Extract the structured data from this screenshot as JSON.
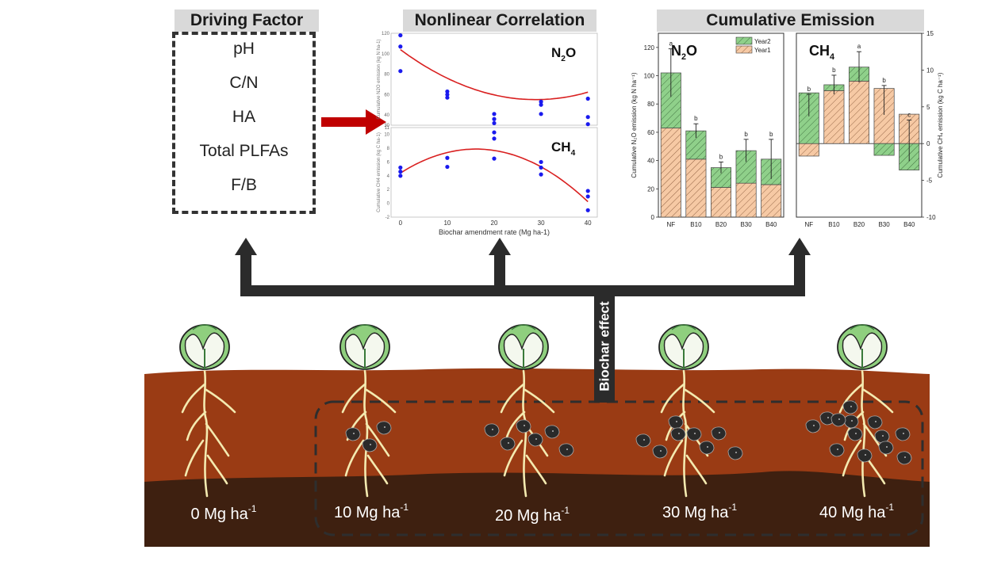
{
  "headers": {
    "driving_factor": "Driving Factor",
    "nonlinear": "Nonlinear Correlation",
    "cumulative": "Cumulative Emission"
  },
  "driving_factors": [
    "pH",
    "C/N",
    "HA",
    "Total PLFAs",
    "F/B"
  ],
  "biochar_effect_label": "Biochar effect",
  "soil_rates": [
    "0 Mg ha",
    "10 Mg ha",
    "20 Mg ha",
    "30 Mg ha",
    "40 Mg ha"
  ],
  "soil_rate_exp": "-1",
  "colors": {
    "soil_top": "#9a3b14",
    "soil_bottom": "#3e2010",
    "arrow_red": "#c00000",
    "year1": "#f6c9a4",
    "year2": "#8fd08a",
    "fit_line": "#d92020",
    "points": "#1a1aee",
    "biochar": "#222222",
    "root": "#f4eab0"
  },
  "chart_data": [
    {
      "type": "scatter",
      "panel": "N2O",
      "label_main": "N",
      "label_sub": "2",
      "label_tail": "O",
      "ylabel": "Cumulative N2O emission (kg N ha-1)",
      "x_ticks": [
        "0",
        "10",
        "20",
        "30",
        "40"
      ],
      "y_ticks": [
        "30",
        "40",
        "60",
        "80",
        "100",
        "120"
      ],
      "ylim": [
        30,
        120
      ],
      "xlim": [
        -2,
        42
      ],
      "points": [
        [
          0,
          118
        ],
        [
          0,
          107
        ],
        [
          0,
          83
        ],
        [
          10,
          63
        ],
        [
          10,
          60
        ],
        [
          10,
          57
        ],
        [
          20,
          41
        ],
        [
          20,
          36
        ],
        [
          20,
          32
        ],
        [
          30,
          53
        ],
        [
          30,
          50
        ],
        [
          30,
          41
        ],
        [
          40,
          56
        ],
        [
          40,
          38
        ],
        [
          40,
          31
        ]
      ],
      "fit": {
        "a": 0.0587,
        "b": -3.39,
        "c": 104
      }
    },
    {
      "type": "scatter",
      "panel": "CH4",
      "label_main": "CH",
      "label_sub": "4",
      "label_tail": "",
      "ylabel": "Cumulative CH4 emission (kg C ha-1)",
      "xlabel": "Biochar amendment rate (Mg ha-1)",
      "x_ticks": [
        "0",
        "10",
        "20",
        "30",
        "40"
      ],
      "y_ticks": [
        "-2",
        "0",
        "2",
        "4",
        "6",
        "8",
        "10",
        "11"
      ],
      "ylim": [
        -2,
        11
      ],
      "xlim": [
        -2,
        42
      ],
      "points": [
        [
          0,
          5.2
        ],
        [
          0,
          4.6
        ],
        [
          0,
          4.0
        ],
        [
          10,
          6.6
        ],
        [
          10,
          5.3
        ],
        [
          20,
          10.3
        ],
        [
          20,
          9.4
        ],
        [
          20,
          6.5
        ],
        [
          30,
          6.0
        ],
        [
          30,
          5.2
        ],
        [
          30,
          4.2
        ],
        [
          40,
          1.8
        ],
        [
          40,
          1.0
        ],
        [
          40,
          -1.0
        ]
      ],
      "fit": {
        "a": -0.0134,
        "b": 0.432,
        "c": 4.4
      }
    },
    {
      "type": "bar",
      "panel": "N2O",
      "label_main": "N",
      "label_sub": "2",
      "label_tail": "O",
      "categories": [
        "NF",
        "B10",
        "B20",
        "B30",
        "B40"
      ],
      "ylabel": "Cumulative N₂O emission (kg N ha⁻¹)",
      "ylim": [
        0,
        130
      ],
      "y_ticks": [
        "0",
        "20",
        "40",
        "60",
        "80",
        "100",
        "120"
      ],
      "series": [
        {
          "name": "Year1",
          "values": [
            63,
            41,
            21,
            24,
            23
          ]
        },
        {
          "name": "Year2",
          "values": [
            39,
            20,
            14,
            23,
            18
          ]
        }
      ],
      "errors": [
        17,
        5,
        4,
        8,
        14
      ],
      "letters": [
        "a",
        "b",
        "b",
        "b",
        "b"
      ],
      "legend": [
        "Year2",
        "Year1"
      ]
    },
    {
      "type": "bar",
      "panel": "CH4",
      "label_main": "CH",
      "label_sub": "4",
      "label_tail": "",
      "categories": [
        "NF",
        "B10",
        "B20",
        "B30",
        "B40"
      ],
      "ylabel": "Cumulative CH₄ emission (kg C ha⁻¹)",
      "ylim": [
        -10,
        15
      ],
      "y_ticks": [
        "-10",
        "-5",
        "0",
        "5",
        "10",
        "15"
      ],
      "series": [
        {
          "name": "Year1",
          "values": [
            -1.7,
            7.2,
            8.5,
            7.5,
            4.0
          ]
        },
        {
          "name": "Year2",
          "values": [
            6.9,
            0.8,
            1.9,
            -1.6,
            -3.6
          ]
        }
      ],
      "errors": [
        1.5,
        1.3,
        2.1,
        2.0,
        2.8
      ],
      "letters": [
        "b",
        "b",
        "a",
        "b",
        "c"
      ]
    }
  ]
}
